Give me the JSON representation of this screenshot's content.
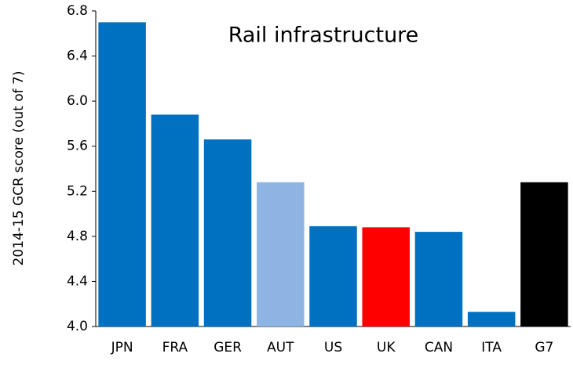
{
  "chart_data": {
    "type": "bar",
    "title": "Rail infrastructure",
    "y_label": "2014-15 GCR score (out of 7)",
    "categories": [
      "JPN",
      "FRA",
      "GER",
      "AUT",
      "US",
      "UK",
      "CAN",
      "ITA",
      "G7"
    ],
    "values": [
      6.7,
      5.88,
      5.66,
      5.28,
      4.89,
      4.88,
      4.84,
      4.13,
      5.28
    ],
    "colors": [
      "#0070c0",
      "#0070c0",
      "#0070c0",
      "#8eb4e3",
      "#0070c0",
      "#ff0000",
      "#0070c0",
      "#0070c0",
      "#000000"
    ],
    "ylim": [
      4.0,
      6.8
    ],
    "yticks": [
      {
        "value": 4.0,
        "label": "4.0"
      },
      4.4,
      4.8,
      5.2,
      5.6,
      {
        "value": 6.0,
        "label": "6.0"
      },
      6.4,
      6.8
    ],
    "grid": false
  }
}
